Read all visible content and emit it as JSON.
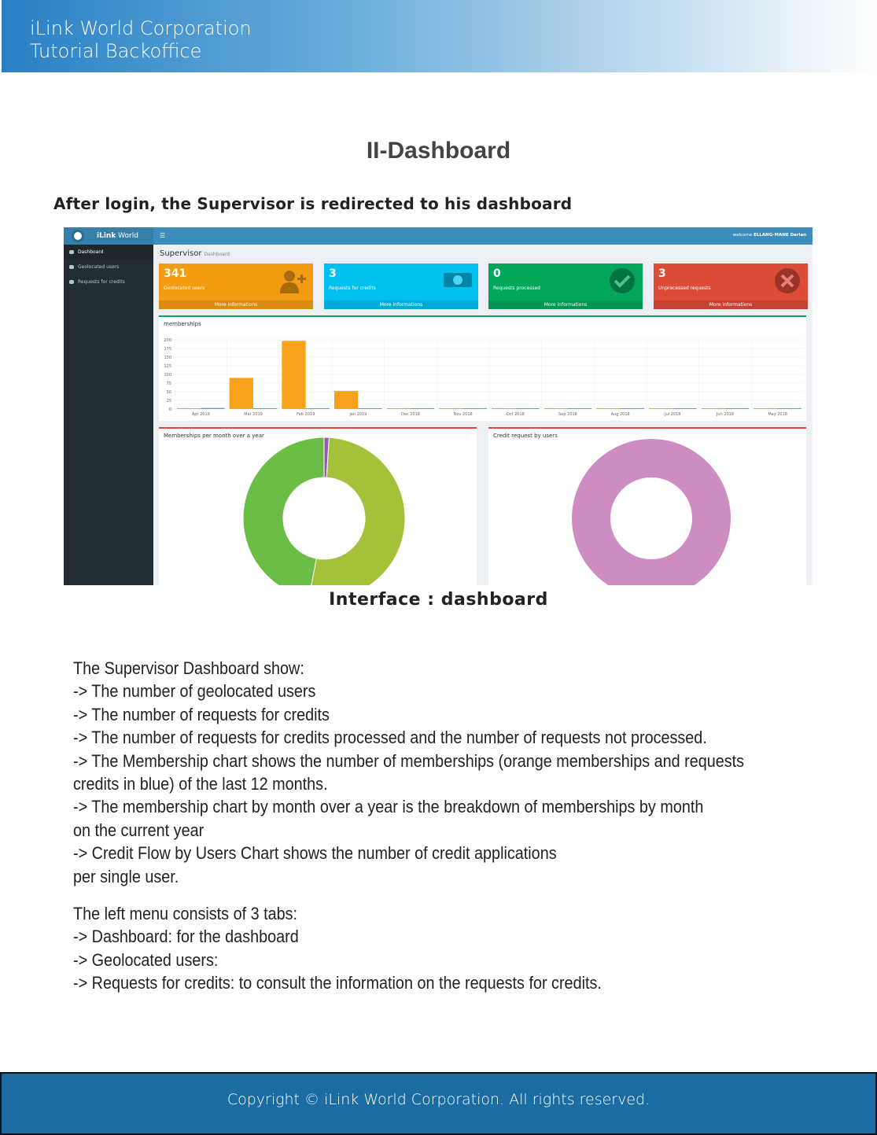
{
  "header": {
    "line1": "iLink World Corporation",
    "line2": "Tutorial Backoffice"
  },
  "title": "II-Dashboard",
  "intro": "After login, the Supervisor is redirected to his dashboard",
  "app": {
    "brand_bold": "iLink",
    "brand_rest": " World",
    "welcome_prefix": "welcome ",
    "welcome_user": "ELLANG-MANE Darlan",
    "menu": [
      {
        "label": "Dashboard",
        "icon": "dashboard-icon",
        "active": true
      },
      {
        "label": "Geolocated users",
        "icon": "users-icon"
      },
      {
        "label": "Requests for credits",
        "icon": "users-icon"
      }
    ],
    "page_title": "Supervisor",
    "page_subtitle": "Dashboard",
    "boxes": [
      {
        "value": "341",
        "label": "Geolocated users",
        "more": "More informations",
        "color": "#f39c12",
        "icon": "user-plus-icon"
      },
      {
        "value": "3",
        "label": "Requests for credits",
        "more": "More informations",
        "color": "#00c0ef",
        "icon": "money-icon"
      },
      {
        "value": "0",
        "label": "Requests processed",
        "more": "More informations",
        "color": "#00a65a",
        "icon": "check-circle-icon"
      },
      {
        "value": "3",
        "label": "Unprocessed requests",
        "more": "More informations",
        "color": "#dd4b39",
        "icon": "times-circle-icon"
      }
    ]
  },
  "chart_data": [
    {
      "type": "bar",
      "title": "memberships",
      "categories": [
        "Apr 2019",
        "Mar 2019",
        "Feb 2019",
        "Jan 2019",
        "Dec 2018",
        "Nov 2018",
        "Oct 2018",
        "Sep 2018",
        "Aug 2018",
        "Jul 2018",
        "Jun 2018",
        "May 2018"
      ],
      "series": [
        {
          "color": "#f7a21d",
          "values": [
            0,
            90,
            197,
            52,
            0,
            2,
            0,
            0,
            0,
            0,
            0,
            0
          ]
        },
        {
          "color": "#3fa9e0",
          "values": [
            3,
            0,
            0,
            0,
            0,
            0,
            0,
            0,
            0,
            0,
            0,
            0
          ]
        }
      ],
      "yticks": [
        0,
        25,
        50,
        75,
        100,
        125,
        150,
        175,
        200
      ],
      "ylim": [
        0,
        200
      ],
      "grid": true
    },
    {
      "type": "pie",
      "title": "Memberships per month over a year",
      "donut": true,
      "values": [
        1,
        52,
        47
      ],
      "colors": [
        "#9b59b6",
        "#a4c13a",
        "#6cbd45"
      ]
    },
    {
      "type": "pie",
      "title": "Credit request by users",
      "donut": true,
      "values": [
        100
      ],
      "colors": [
        "#cd8dc1"
      ]
    }
  ],
  "caption": "Interface : dashboard",
  "body": [
    "The Supervisor Dashboard show:",
    "-> The number of geolocated users",
    "-> The number of requests for credits",
    "-> The number of requests for credits processed and the number of requests not processed.",
    "-> The Membership chart shows the number of memberships (orange memberships and requests",
    "credits in blue) of the last 12 months.",
    "-> The membership chart by month over a year is the breakdown of memberships by month",
    "on the current year",
    "-> Credit Flow by Users Chart shows the number of credit applications",
    "per single user.",
    "",
    "The left menu consists of 3 tabs:",
    "-> Dashboard: for the dashboard",
    "-> Geolocated users:",
    "-> Requests for credits: to consult the information on the requests for credits."
  ],
  "footer": "Copyright © iLink World Corporation. All rights reserved."
}
